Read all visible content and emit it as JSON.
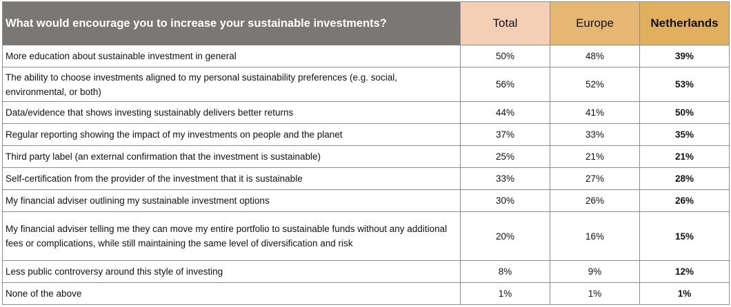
{
  "header": {
    "question": "What would encourage you to increase your sustainable investments?",
    "columns": [
      "Total",
      "Europe",
      "Netherlands"
    ]
  },
  "rows": [
    {
      "label": "More education about sustainable investment in general",
      "total": "50%",
      "europe": "48%",
      "netherlands": "39%"
    },
    {
      "label": "The ability to choose investments aligned to my personal sustainability preferences (e.g. social, environmental, or both)",
      "total": "56%",
      "europe": "52%",
      "netherlands": "53%"
    },
    {
      "label": "Data/evidence that shows investing sustainably delivers better returns",
      "total": "44%",
      "europe": "41%",
      "netherlands": "50%"
    },
    {
      "label": "Regular reporting showing the impact of my investments on people and the planet",
      "total": "37%",
      "europe": "33%",
      "netherlands": "35%"
    },
    {
      "label": "Third party label (an external confirmation that the investment is sustainable)",
      "total": "25%",
      "europe": "21%",
      "netherlands": "21%"
    },
    {
      "label": "Self-certification from the provider of the investment that it is sustainable",
      "total": "33%",
      "europe": "27%",
      "netherlands": "28%"
    },
    {
      "label": "My financial adviser outlining my sustainable investment options",
      "total": "30%",
      "europe": "26%",
      "netherlands": "26%"
    },
    {
      "label": "My financial adviser telling me they can move my entire portfolio to sustainable funds without any additional fees or complications, while still maintaining the same level of diversification and risk",
      "total": "20%",
      "europe": "16%",
      "netherlands": "15%"
    },
    {
      "label": "Less public controversy around this style of investing",
      "total": "8%",
      "europe": "9%",
      "netherlands": "12%"
    },
    {
      "label": "None of the above",
      "total": "1%",
      "europe": "1%",
      "netherlands": "1%"
    }
  ]
}
